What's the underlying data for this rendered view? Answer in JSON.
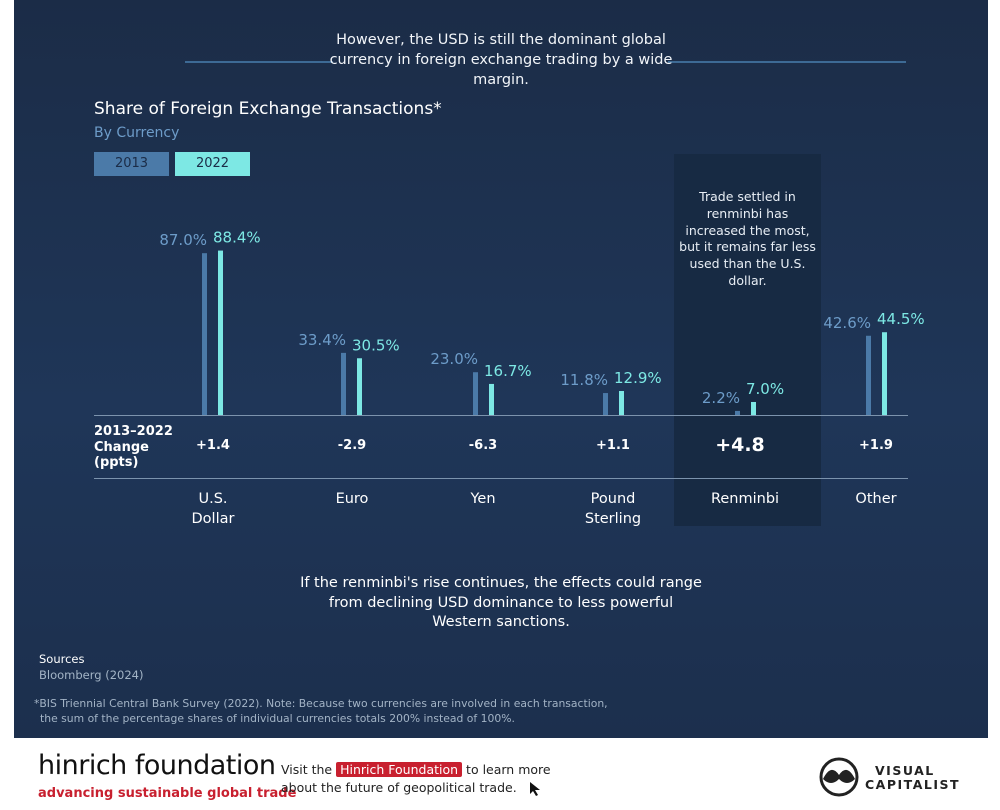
{
  "intro": "However, the USD is still the dominant global currency in foreign exchange trading by a wide margin.",
  "title": "Share of Foreign Exchange Transactions*",
  "subtitle": "By Currency",
  "legend": [
    "2013",
    "2022"
  ],
  "colors": {
    "y2013": "#4b7aa8",
    "y2022": "#7de8e4",
    "label2013": "#6d9cc9",
    "label2022": "#7de8e4"
  },
  "callout": "Trade settled in renminbi has increased the most, but it remains far less used than the U.S. dollar.",
  "change_label": {
    "line1": "2013–2022",
    "line2": "Change",
    "line3": "(ppts)"
  },
  "changes": [
    "+1.4",
    "-2.9",
    "-6.3",
    "+1.1",
    "+4.8",
    "+1.9"
  ],
  "categories_display": [
    {
      "line1": "U.S.",
      "line2": "Dollar"
    },
    {
      "line1": "Euro",
      "line2": ""
    },
    {
      "line1": "Yen",
      "line2": ""
    },
    {
      "line1": "Pound",
      "line2": "Sterling"
    },
    {
      "line1": "Renminbi",
      "line2": ""
    },
    {
      "line1": "Other",
      "line2": ""
    }
  ],
  "chart_data": {
    "type": "bar",
    "title": "Share of Foreign Exchange Transactions*",
    "subtitle": "By Currency",
    "categories": [
      "U.S. Dollar",
      "Euro",
      "Yen",
      "Pound Sterling",
      "Renminbi",
      "Other"
    ],
    "series": [
      {
        "name": "2013",
        "values": [
          87.0,
          33.4,
          23.0,
          11.8,
          2.2,
          42.6
        ],
        "labels": [
          "87.0%",
          "33.4%",
          "23.0%",
          "11.8%",
          "2.2%",
          "42.6%"
        ]
      },
      {
        "name": "2022",
        "values": [
          88.4,
          30.5,
          16.7,
          12.9,
          7.0,
          44.5
        ],
        "labels": [
          "88.4%",
          "30.5%",
          "16.7%",
          "12.9%",
          "7.0%",
          "44.5%"
        ]
      }
    ],
    "ylim": [
      0,
      100
    ],
    "grid": false,
    "legend": "top-left"
  },
  "outro": "If the renminbi's rise continues, the effects could range from declining USD dominance to less powerful Western sanctions.",
  "sources_label": "Sources",
  "sources_value": "Bloomberg (2024)",
  "footnote_line1": "*BIS Triennial Central Bank Survey (2022). Note: Because two currencies are involved in each transaction,",
  "footnote_line2": "the sum of the percentage shares of individual currencies totals 200% instead of 100%.",
  "footer": {
    "logo": "hinrich foundation",
    "tagline": "advancing sustainable global trade",
    "visit_pre": "Visit the",
    "visit_link": "Hinrich Foundation",
    "visit_post": "to learn more",
    "visit_line2": "about the future of geopolitical trade.",
    "vc_line1": "VISUAL",
    "vc_line2": "CAPITALIST"
  }
}
